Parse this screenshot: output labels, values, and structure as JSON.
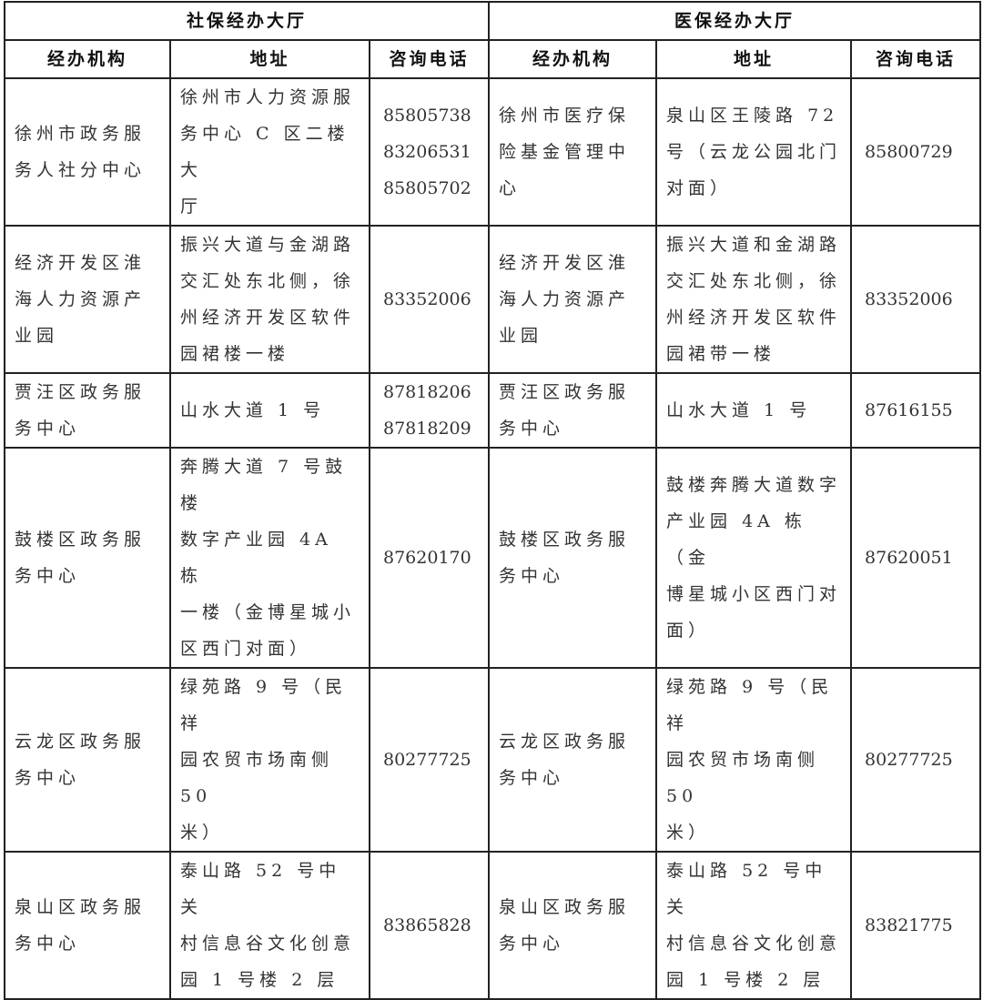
{
  "groups": [
    "社保经办大厅",
    "医保经办大厅"
  ],
  "columns": [
    "经办机构",
    "地址",
    "咨询电话",
    "经办机构",
    "地址",
    "咨询电话"
  ],
  "rows": [
    [
      "徐州市政务服\n务人社分中心",
      "徐州市人力资源服\n务中心 C 区二楼大\n厅",
      "85805738\n83206531\n85805702",
      "徐州市医疗保\n险基金管理中\n心",
      "泉山区王陵路 72\n号（云龙公园北门\n对面）",
      "85800729"
    ],
    [
      "经济开发区淮\n海人力资源产\n业园",
      "振兴大道与金湖路\n交汇处东北侧，徐\n州经济开发区软件\n园裙楼一楼",
      "83352006",
      "经济开发区淮\n海人力资源产\n业园",
      "振兴大道和金湖路\n交汇处东北侧，徐\n州经济开发区软件\n园裙带一楼",
      "83352006"
    ],
    [
      "贾汪区政务服\n务中心",
      "山水大道 1 号",
      "87818206\n87818209",
      "贾汪区政务服\n务中心",
      "山水大道 1 号",
      "87616155"
    ],
    [
      "鼓楼区政务服\n务中心",
      "奔腾大道 7 号鼓楼\n数字产业园 4A 栋\n一楼（金博星城小\n区西门对面）",
      "87620170",
      "鼓楼区政务服\n务中心",
      "鼓楼奔腾大道数字\n产业园 4A 栋 （金\n博星城小区西门对\n面）",
      "87620051"
    ],
    [
      "云龙区政务服\n务中心",
      "绿苑路 9 号（民祥\n园农贸市场南侧 50\n米）",
      "80277725",
      "云龙区政务服\n务中心",
      "绿苑路 9 号（民祥\n园农贸市场南侧 50\n米）",
      "80277725"
    ],
    [
      "泉山区政务服\n务中心",
      "泰山路 52 号中关\n村信息谷文化创意\n园 1 号楼 2 层",
      "83865828",
      "泉山区政务服\n务中心",
      "泰山路 52 号中关\n村信息谷文化创意\n园 1 号楼 2 层",
      "83821775"
    ]
  ]
}
